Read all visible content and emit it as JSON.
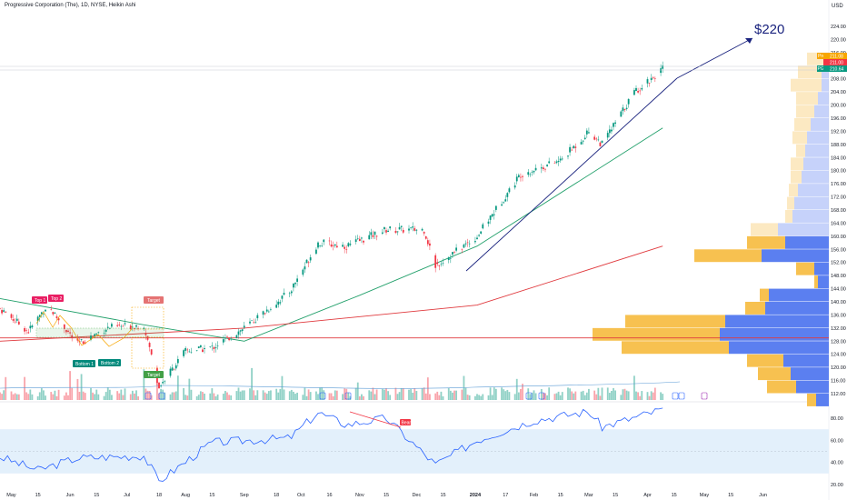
{
  "header": {
    "title": "Progressive Corporation (The), 1D, NYSE, Heikin Ashi",
    "currency": "USD"
  },
  "price_axis": {
    "ticks": [
      "224.00",
      "220.00",
      "216.00",
      "212.00",
      "208.00",
      "204.00",
      "200.00",
      "196.00",
      "192.00",
      "188.00",
      "184.00",
      "180.00",
      "176.00",
      "172.00",
      "168.00",
      "164.00",
      "160.00",
      "156.00",
      "152.00",
      "148.00",
      "144.00",
      "140.00",
      "136.00",
      "132.00",
      "128.00",
      "124.00",
      "120.00",
      "116.00",
      "112.00"
    ],
    "labels": {
      "pre": {
        "tag": "Pre",
        "value": "211.08"
      },
      "last": {
        "value": "211.00"
      },
      "pgr": {
        "tag": "PGR",
        "value": "210.64"
      }
    }
  },
  "rsi_axis": {
    "ticks": [
      "80.00",
      "60.00",
      "40.00",
      "20.00"
    ]
  },
  "time_axis": {
    "ticks": [
      "May",
      "15",
      "Jun",
      "15",
      "Jul",
      "18",
      "Aug",
      "15",
      "Sep",
      "18",
      "Oct",
      "16",
      "Nov",
      "15",
      "Dec",
      "15",
      "2024",
      "17",
      "Feb",
      "15",
      "Mar",
      "15",
      "Apr",
      "15",
      "May",
      "15",
      "Jun"
    ]
  },
  "annotations": {
    "target_price": "$220",
    "top1": "Top 1",
    "top2": "Top 2",
    "bottom1": "Bottom 1",
    "bottom2": "Bottom 2",
    "target_up": "Target",
    "target_down": "Target",
    "rsi_div": "Bear"
  },
  "colors": {
    "up": "#089981",
    "down": "#f23645",
    "ma_green": "#22a06b",
    "ma_red": "#e03a3e",
    "trendline": "#1a237e",
    "rsi_line": "#2962ff",
    "rsi_band": "#e3f0fb",
    "vp_up": "#f7c150",
    "vp_down": "#5b7ff0"
  },
  "chart_data": {
    "type": "candlestick",
    "title": "Progressive Corporation (The), 1D, NYSE, Heikin Ashi",
    "ylim": [
      110,
      226
    ],
    "x_range": [
      "2023-04-25",
      "2024-06-30"
    ],
    "price_path": [
      {
        "date": "2023-04-25",
        "close": 138
      },
      {
        "date": "2023-05-10",
        "close": 131
      },
      {
        "date": "2023-05-20",
        "close": 139
      },
      {
        "date": "2023-06-05",
        "close": 127
      },
      {
        "date": "2023-06-20",
        "close": 132
      },
      {
        "date": "2023-07-10",
        "close": 133
      },
      {
        "date": "2023-07-18",
        "close": 114
      },
      {
        "date": "2023-08-01",
        "close": 125
      },
      {
        "date": "2023-08-15",
        "close": 126
      },
      {
        "date": "2023-09-01",
        "close": 132
      },
      {
        "date": "2023-09-25",
        "close": 143
      },
      {
        "date": "2023-10-10",
        "close": 158
      },
      {
        "date": "2023-10-25",
        "close": 157
      },
      {
        "date": "2023-11-15",
        "close": 162
      },
      {
        "date": "2023-12-05",
        "close": 162
      },
      {
        "date": "2023-12-11",
        "close": 151
      },
      {
        "date": "2024-01-02",
        "close": 160
      },
      {
        "date": "2024-01-25",
        "close": 179
      },
      {
        "date": "2024-02-15",
        "close": 183
      },
      {
        "date": "2024-03-01",
        "close": 192
      },
      {
        "date": "2024-03-08",
        "close": 188
      },
      {
        "date": "2024-03-25",
        "close": 204
      },
      {
        "date": "2024-04-09",
        "close": 211
      }
    ],
    "last_price": 210.64,
    "projection_target": 220,
    "moving_averages": [
      {
        "color": "green",
        "values": [
          {
            "date": "2023-04-25",
            "v": 141
          },
          {
            "date": "2023-07-10",
            "v": 133
          },
          {
            "date": "2023-09-01",
            "v": 128
          },
          {
            "date": "2023-11-01",
            "v": 142
          },
          {
            "date": "2024-01-02",
            "v": 157
          },
          {
            "date": "2024-04-09",
            "v": 193
          }
        ]
      },
      {
        "color": "red",
        "values": [
          {
            "date": "2023-04-25",
            "v": 128
          },
          {
            "date": "2023-09-01",
            "v": 132
          },
          {
            "date": "2024-01-02",
            "v": 139
          },
          {
            "date": "2024-04-09",
            "v": 157
          }
        ]
      }
    ],
    "horizontal_line": 129,
    "rsi": {
      "ylim": [
        10,
        95
      ],
      "band": [
        30,
        70
      ],
      "points": [
        {
          "date": "2023-04-25",
          "v": 45
        },
        {
          "date": "2023-05-15",
          "v": 33
        },
        {
          "date": "2023-06-05",
          "v": 44
        },
        {
          "date": "2023-07-10",
          "v": 46
        },
        {
          "date": "2023-07-18",
          "v": 23
        },
        {
          "date": "2023-08-15",
          "v": 58
        },
        {
          "date": "2023-09-25",
          "v": 62
        },
        {
          "date": "2023-10-10",
          "v": 85
        },
        {
          "date": "2023-10-25",
          "v": 74
        },
        {
          "date": "2023-11-15",
          "v": 80
        },
        {
          "date": "2023-12-11",
          "v": 38
        },
        {
          "date": "2024-01-02",
          "v": 60
        },
        {
          "date": "2024-02-01",
          "v": 78
        },
        {
          "date": "2024-03-01",
          "v": 86
        },
        {
          "date": "2024-03-08",
          "v": 72
        },
        {
          "date": "2024-04-09",
          "v": 88
        }
      ]
    }
  }
}
